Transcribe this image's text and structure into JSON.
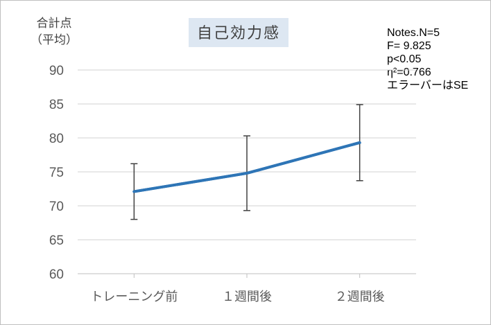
{
  "chart_data": {
    "type": "line",
    "title": "自己効力感",
    "ylabel_lines": [
      "合計点",
      "（平均）"
    ],
    "categories": [
      "トレーニング前",
      "１週間後",
      "２週間後"
    ],
    "series": [
      {
        "values": [
          72.1,
          74.8,
          79.3
        ],
        "error": [
          4.1,
          5.5,
          5.6
        ],
        "color": "#2e75b6"
      }
    ],
    "ylim": [
      60,
      90
    ],
    "yticks": [
      60,
      65,
      70,
      75,
      80,
      85,
      90
    ],
    "grid": true,
    "notes": [
      "Notes.N=5",
      "F= 9.825",
      "p<0.05",
      "η²=0.766",
      "エラーバーはSE"
    ]
  }
}
